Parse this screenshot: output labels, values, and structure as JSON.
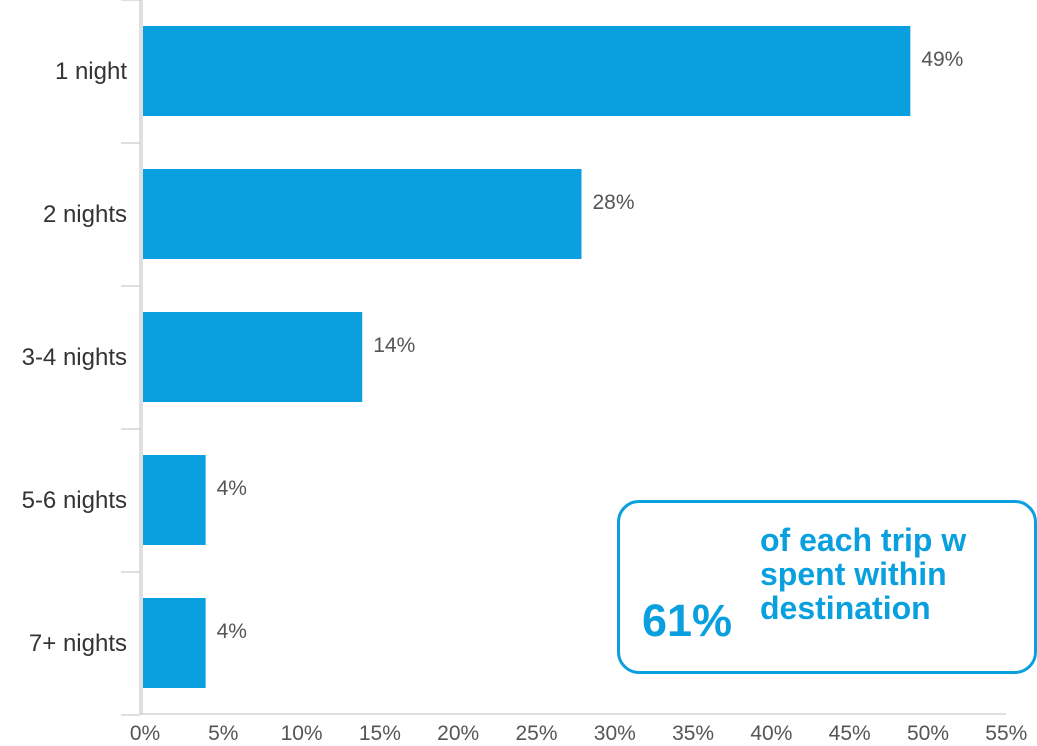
{
  "chart_data": {
    "type": "bar",
    "orientation": "horizontal",
    "categories": [
      "1 night",
      "2 nights",
      "3-4 nights",
      "5-6 nights",
      "7+ nights"
    ],
    "values": [
      49,
      28,
      14,
      4,
      4
    ],
    "data_labels": [
      "49%",
      "28%",
      "14%",
      "4%",
      "4%"
    ],
    "xlim": [
      0,
      55
    ],
    "xticks": [
      "0%",
      "5%",
      "10%",
      "15%",
      "20%",
      "25%",
      "30%",
      "35%",
      "40%",
      "45%",
      "50%",
      "55%"
    ],
    "xtick_values": [
      0,
      5,
      10,
      15,
      20,
      25,
      30,
      35,
      40,
      45,
      50,
      55
    ],
    "title": "",
    "xlabel": "",
    "ylabel": "",
    "grid": false,
    "bar_color": "#0a9fdf"
  },
  "callout": {
    "stat": "61%",
    "lines": [
      "of each trip w",
      "spent within",
      "destination"
    ],
    "color": "#0a9fdf"
  }
}
